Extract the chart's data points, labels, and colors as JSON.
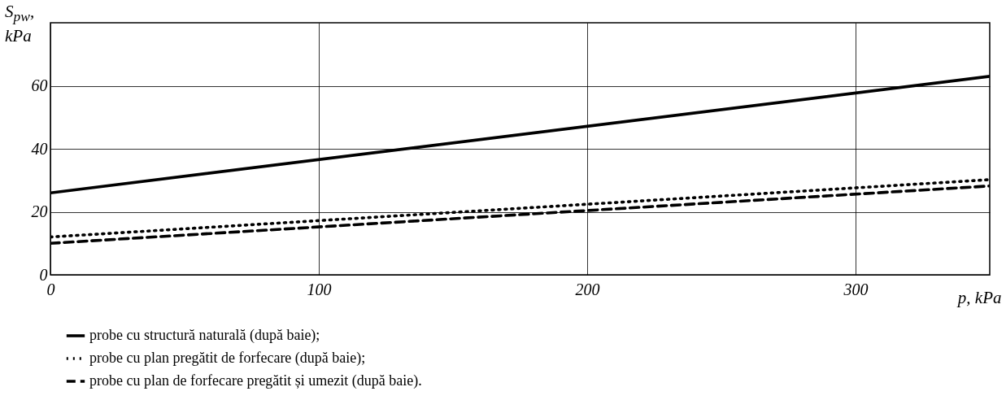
{
  "chart_data": {
    "type": "line",
    "xlabel": "p, kPa",
    "ylabel": "S$_{pw}$, kPa",
    "x": [
      0,
      350
    ],
    "series": [
      {
        "name": "probe cu structură naturală (după baie);",
        "color": "#000000",
        "line_style": "solid",
        "values": [
          26,
          63
        ]
      },
      {
        "name": "probe cu plan pregătit de forfecare (după baie);",
        "color": "#000000",
        "line_style": "dotted",
        "values": [
          12,
          30.2
        ]
      },
      {
        "name": "probe cu plan de forfecare pregătit și umezit (după baie).",
        "color": "#000000",
        "line_style": "dashed",
        "values": [
          10,
          28.2
        ]
      }
    ],
    "xlim": [
      0,
      350
    ],
    "ylim": [
      0,
      80
    ],
    "xticks": [
      0,
      100,
      200,
      300
    ],
    "yticks": [
      0,
      20,
      40,
      60
    ],
    "grid": true,
    "legend": "bottom"
  }
}
